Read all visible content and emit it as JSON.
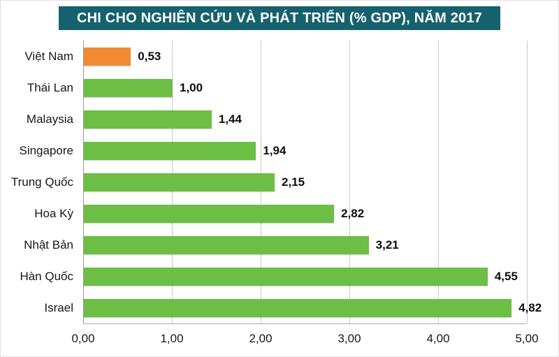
{
  "chart_data": {
    "type": "bar",
    "orientation": "horizontal",
    "title": "CHI CHO NGHIÊN CỨU VÀ PHÁT TRIỂN (% GDP), NĂM 2017",
    "categories": [
      "Việt Nam",
      "Thái Lan",
      "Malaysia",
      "Singapore",
      "Trung Quốc",
      "Hoa Kỳ",
      "Nhật Bản",
      "Hàn Quốc",
      "Israel"
    ],
    "values": [
      0.53,
      1.0,
      1.44,
      1.94,
      2.15,
      2.82,
      3.21,
      4.55,
      4.82
    ],
    "value_labels": [
      "0,53",
      "1,00",
      "1,44",
      "1,94",
      "2,15",
      "2,82",
      "3,21",
      "4,55",
      "4,82"
    ],
    "x_ticks": [
      "0,00",
      "1,00",
      "2,00",
      "3,00",
      "4,00",
      "5,00"
    ],
    "xlim": [
      0,
      5
    ],
    "grid": true,
    "legend": "none",
    "bar_color": "#6CBE45",
    "highlight_index": 0,
    "highlight_color": "#F28A33",
    "title_bg": "#15616D"
  }
}
